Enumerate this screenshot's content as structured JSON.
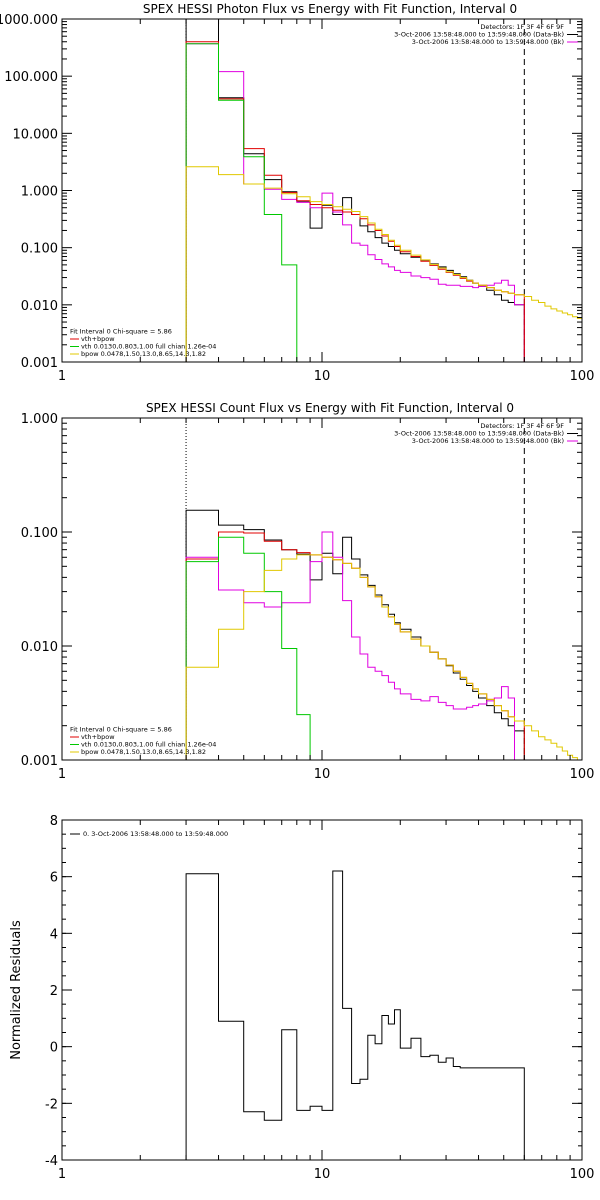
{
  "colors": {
    "background": "#ffffff",
    "axes": "#000000",
    "data": "#000000",
    "total_model": "#e00000",
    "background_model": "#e000e0",
    "vth": "#00c800",
    "bpow": "#e0c800"
  },
  "chart_data": [
    {
      "type": "line",
      "style": "step",
      "title": "SPEX HESSI Photon Flux vs Energy with Fit Function, Interval 0",
      "xlabel": "",
      "ylabel": "",
      "xscale": "log",
      "yscale": "log",
      "xlim": [
        1,
        100
      ],
      "ylim": [
        0.001,
        1000
      ],
      "xticks": [
        1,
        10,
        100
      ],
      "xtick_labels": [
        "1",
        "10",
        "100"
      ],
      "yticks": [
        0.001,
        0.01,
        0.1,
        1,
        10,
        100,
        1000
      ],
      "ytick_labels": [
        "0.001",
        "0.010",
        "0.100",
        "1.000",
        "10.000",
        "100.000",
        "1000.000"
      ],
      "vlines": [
        {
          "x": 3,
          "style": "dotted"
        },
        {
          "x": 60,
          "style": "dashed"
        }
      ],
      "legend_top": {
        "placement": "top-right",
        "lines": [
          {
            "text": "Detectors: 1F 3F 4F 6F 9F",
            "color": ""
          },
          {
            "text": "3-Oct-2006 13:58:48.000 to 13:59:48.000 (Data-Bk)",
            "color": "data"
          },
          {
            "text": "3-Oct-2006 13:58:48.000 to 13:59:48.000 (Bk)",
            "color": "background_model"
          }
        ]
      },
      "legend_bottom": {
        "placement": "bottom-left",
        "lines": [
          {
            "text": "Fit Interval 0   Chi-square = 5.86",
            "color": ""
          },
          {
            "text": "vth+bpow",
            "color": "total_model"
          },
          {
            "text": "vth 0.0130,0.803,1.00  full chian 1.26e-04",
            "color": "vth"
          },
          {
            "text": "bpow 0.0478,1.50,13.0,8.65,14.3,1.82",
            "color": "bpow"
          }
        ]
      },
      "edges": [
        3,
        4,
        5,
        6,
        7,
        8,
        9,
        10,
        11,
        12,
        13,
        14,
        15,
        16,
        17,
        18,
        19,
        20,
        22,
        24,
        26,
        28,
        30,
        32,
        34,
        36,
        38,
        40,
        43,
        46,
        49,
        52,
        55,
        60
      ],
      "tail_edges": [
        60,
        64,
        68,
        72,
        76,
        80,
        84,
        88,
        92,
        96,
        100
      ],
      "series": [
        {
          "name": "3-Oct-2006 13:58:48.000 to 13:59:48.000 (Data-Bk)",
          "color": "data",
          "values": [
            1000,
            42,
            4.4,
            1.55,
            0.95,
            0.65,
            0.22,
            0.55,
            0.38,
            0.75,
            0.38,
            0.24,
            0.19,
            0.15,
            0.12,
            0.105,
            0.09,
            0.078,
            0.068,
            0.06,
            0.052,
            0.046,
            0.04,
            0.035,
            0.031,
            0.027,
            0.024,
            0.021,
            0.018,
            0.015,
            0.012,
            0.011,
            0.01
          ]
        },
        {
          "name": "3-Oct-2006 13:58:48.000 to 13:59:48.000 (Bk)",
          "color": "background_model",
          "values": [
            370,
            120,
            1.3,
            1.05,
            0.7,
            0.62,
            0.5,
            0.9,
            0.42,
            0.25,
            0.12,
            0.11,
            0.075,
            0.062,
            0.052,
            0.046,
            0.04,
            0.037,
            0.032,
            0.03,
            0.028,
            0.023,
            0.022,
            0.022,
            0.021,
            0.021,
            0.02,
            0.021,
            0.022,
            0.024,
            0.027,
            0.022,
            0.01
          ]
        },
        {
          "name": "vth+bpow",
          "color": "total_model",
          "values": [
            400,
            40,
            5.4,
            1.85,
            0.92,
            0.66,
            0.57,
            0.5,
            0.45,
            0.42,
            0.38,
            0.32,
            0.25,
            0.2,
            0.16,
            0.13,
            0.105,
            0.085,
            0.07,
            0.058,
            0.049,
            0.042,
            0.037,
            0.033,
            0.029,
            0.026,
            0.024,
            0.022,
            0.02,
            0.018,
            0.017,
            0.016,
            0.015
          ]
        },
        {
          "name": "vth 0.0130,0.803,1.00  full chian 1.26e-04",
          "color": "vth",
          "values": [
            370,
            38,
            3.9,
            0.38,
            0.05,
            0.001
          ]
        },
        {
          "name": "bpow 0.0478,1.50,13.0,8.65,14.3,1.82",
          "color": "bpow",
          "values": [
            2.6,
            1.9,
            1.3,
            1.1,
            0.88,
            0.78,
            0.64,
            0.57,
            0.52,
            0.47,
            0.43,
            0.35,
            0.27,
            0.21,
            0.17,
            0.135,
            0.11,
            0.09,
            0.074,
            0.061,
            0.051,
            0.044,
            0.038,
            0.034,
            0.03,
            0.027,
            0.024,
            0.022,
            0.02,
            0.018,
            0.017,
            0.016,
            0.015
          ],
          "tail_values": [
            0.014,
            0.012,
            0.011,
            0.0095,
            0.0085,
            0.0078,
            0.0072,
            0.0067,
            0.0062,
            0.0058
          ]
        }
      ]
    },
    {
      "type": "line",
      "style": "step",
      "title": "SPEX HESSI Count Flux vs Energy with Fit Function, Interval 0",
      "xlabel": "",
      "ylabel": "",
      "xscale": "log",
      "yscale": "log",
      "xlim": [
        1,
        100
      ],
      "ylim": [
        0.001,
        1
      ],
      "xticks": [
        1,
        10,
        100
      ],
      "xtick_labels": [
        "1",
        "10",
        "100"
      ],
      "yticks": [
        0.001,
        0.01,
        0.1,
        1
      ],
      "ytick_labels": [
        "0.001",
        "0.010",
        "0.100",
        "1.000"
      ],
      "vlines": [
        {
          "x": 3,
          "style": "dotted"
        },
        {
          "x": 60,
          "style": "dashed"
        }
      ],
      "legend_top": {
        "placement": "top-right",
        "lines": [
          {
            "text": "Detectors: 1F 3F 4F 6F 9F",
            "color": ""
          },
          {
            "text": "3-Oct-2006 13:58:48.000 to 13:59:48.000 (Data-Bk)",
            "color": "data"
          },
          {
            "text": "3-Oct-2006 13:58:48.000 to 13:59:48.000 (Bk)",
            "color": "background_model"
          }
        ]
      },
      "legend_bottom": {
        "placement": "bottom-left",
        "lines": [
          {
            "text": "Fit Interval 0   Chi-square = 5.86",
            "color": ""
          },
          {
            "text": "vth+bpow",
            "color": "total_model"
          },
          {
            "text": "vth 0.0130,0.803,1.00  full chian 1.26e-04",
            "color": "vth"
          },
          {
            "text": "bpow 0.0478,1.50,13.0,8.65,14.3,1.82",
            "color": "bpow"
          }
        ]
      },
      "edges": [
        3,
        4,
        5,
        6,
        7,
        8,
        9,
        10,
        11,
        12,
        13,
        14,
        15,
        16,
        17,
        18,
        19,
        20,
        22,
        24,
        26,
        28,
        30,
        32,
        34,
        36,
        38,
        40,
        43,
        46,
        49,
        52,
        55,
        60
      ],
      "tail_edges": [
        60,
        64,
        68,
        72,
        76,
        80,
        84,
        88,
        92,
        96,
        100
      ],
      "series": [
        {
          "name": "3-Oct-2006 13:58:48.000 to 13:59:48.000 (Data-Bk)",
          "color": "data",
          "values": [
            0.155,
            0.115,
            0.105,
            0.085,
            0.07,
            0.064,
            0.038,
            0.065,
            0.043,
            0.09,
            0.058,
            0.042,
            0.034,
            0.028,
            0.023,
            0.019,
            0.016,
            0.014,
            0.012,
            0.01,
            0.0088,
            0.0077,
            0.0067,
            0.0058,
            0.0051,
            0.0045,
            0.004,
            0.0035,
            0.003,
            0.0026,
            0.0023,
            0.002,
            0.0018
          ]
        },
        {
          "name": "3-Oct-2006 13:58:48.000 to 13:59:48.000 (Bk)",
          "color": "background_model",
          "values": [
            0.06,
            0.031,
            0.024,
            0.022,
            0.024,
            0.024,
            0.055,
            0.1,
            0.06,
            0.025,
            0.012,
            0.0085,
            0.0065,
            0.006,
            0.0055,
            0.0048,
            0.0042,
            0.0038,
            0.0034,
            0.0033,
            0.0036,
            0.0032,
            0.003,
            0.0028,
            0.0028,
            0.0029,
            0.003,
            0.0031,
            0.0033,
            0.0035,
            0.0044,
            0.0035,
            0.001
          ]
        },
        {
          "name": "vth+bpow",
          "color": "total_model",
          "values": [
            0.058,
            0.1,
            0.098,
            0.083,
            0.07,
            0.066,
            0.063,
            0.06,
            0.057,
            0.053,
            0.048,
            0.04,
            0.033,
            0.027,
            0.022,
            0.018,
            0.0155,
            0.0133,
            0.0115,
            0.01,
            0.0088,
            0.0077,
            0.0068,
            0.006,
            0.0053,
            0.0047,
            0.0042,
            0.0038,
            0.0034,
            0.003,
            0.0027,
            0.0024,
            0.0022
          ]
        },
        {
          "name": "vth 0.0130,0.803,1.00  full chian 1.26e-04",
          "color": "vth",
          "values": [
            0.055,
            0.09,
            0.065,
            0.03,
            0.0095,
            0.0025,
            0.001
          ]
        },
        {
          "name": "bpow 0.0478,1.50,13.0,8.65,14.3,1.82",
          "color": "bpow",
          "values": [
            0.0065,
            0.014,
            0.03,
            0.046,
            0.058,
            0.063,
            0.063,
            0.06,
            0.057,
            0.053,
            0.048,
            0.04,
            0.033,
            0.027,
            0.022,
            0.018,
            0.0155,
            0.0133,
            0.0115,
            0.01,
            0.0088,
            0.0077,
            0.0068,
            0.006,
            0.0053,
            0.0047,
            0.0042,
            0.0038,
            0.0034,
            0.003,
            0.0027,
            0.0024,
            0.0022
          ],
          "tail_values": [
            0.002,
            0.0018,
            0.0016,
            0.0015,
            0.0014,
            0.0013,
            0.0012,
            0.0011,
            0.00105,
            0.001
          ]
        }
      ]
    },
    {
      "type": "line",
      "style": "step",
      "title": "",
      "xlabel": "",
      "ylabel": "Normalized Residuals",
      "xscale": "log",
      "yscale": "linear",
      "xlim": [
        1,
        100
      ],
      "ylim": [
        -4,
        8
      ],
      "xticks": [
        1,
        10,
        100
      ],
      "xtick_labels": [
        "1",
        "10",
        "100"
      ],
      "yticks": [
        -4,
        -2,
        0,
        2,
        4,
        6,
        8
      ],
      "ytick_labels": [
        "-4",
        "-2",
        "0",
        "2",
        "4",
        "6",
        "8"
      ],
      "legend_top": {
        "placement": "top-left",
        "lines": [
          {
            "text": "0.  3-Oct-2006 13:58:48.000 to 13:59:48.000",
            "color": "data"
          }
        ]
      },
      "edges": [
        3,
        4,
        5,
        6,
        7,
        8,
        9,
        10,
        11,
        12,
        13,
        14,
        15,
        16,
        17,
        18,
        19,
        20,
        22,
        24,
        26,
        28,
        30,
        32,
        34,
        36,
        38,
        40,
        43,
        46,
        49,
        52,
        55,
        60
      ],
      "series": [
        {
          "name": "0.  3-Oct-2006 13:58:48.000 to 13:59:48.000",
          "color": "data",
          "values": [
            6.1,
            0.9,
            -2.3,
            -2.6,
            0.6,
            -2.25,
            -2.1,
            -2.25,
            6.2,
            1.35,
            -1.3,
            -1.15,
            0.4,
            0.1,
            1.1,
            0.8,
            1.3,
            -0.05,
            0.3,
            -0.35,
            -0.3,
            -0.55,
            -0.4,
            -0.7,
            -0.75,
            -0.75,
            -0.75,
            -0.75,
            -0.75,
            -0.75,
            -0.75,
            -0.75,
            -0.75
          ]
        }
      ]
    }
  ]
}
